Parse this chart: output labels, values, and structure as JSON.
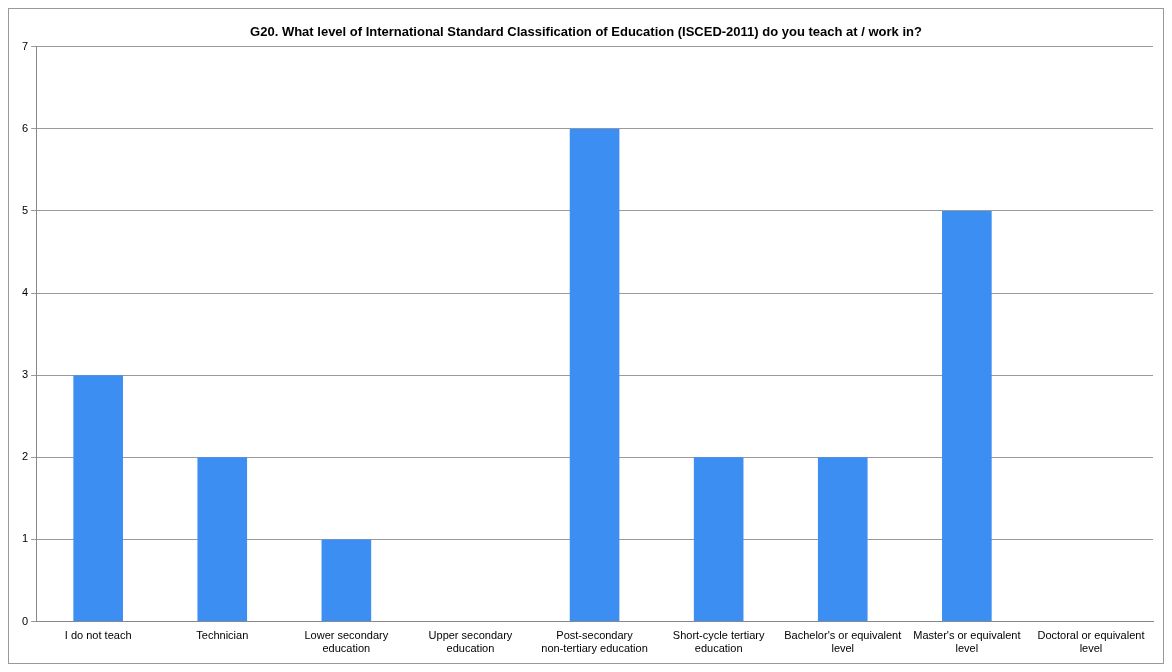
{
  "chart_data": {
    "type": "bar",
    "title": "G20. What level of International Standard Classification of Education (ISCED-2011) do you teach at / work in?",
    "categories": [
      "I do not teach",
      "Technician",
      "Lower secondary education",
      "Upper secondary education",
      "Post-secondary non-tertiary education",
      "Short-cycle tertiary education",
      "Bachelor's or equivalent level",
      "Master's or equivalent level",
      "Doctoral or equivalent level"
    ],
    "values": [
      3,
      2,
      1,
      0,
      6,
      2,
      2,
      5,
      0
    ],
    "color": "#3d8ef2",
    "ylim": [
      0,
      7
    ],
    "yticks": [
      0,
      1,
      2,
      3,
      4,
      5,
      6,
      7
    ],
    "grid": "y",
    "legend": false
  }
}
